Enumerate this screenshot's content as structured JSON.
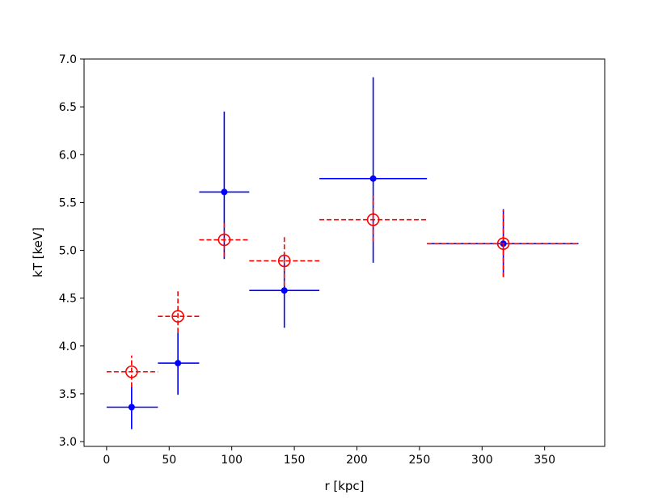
{
  "chart_data": {
    "type": "scatter",
    "title": "",
    "xlabel": "r [kpc]",
    "ylabel": "kT [keV]",
    "xlim": [
      -18,
      398
    ],
    "ylim": [
      2.95,
      7.0
    ],
    "xticks": [
      0,
      50,
      100,
      150,
      200,
      250,
      300,
      350
    ],
    "yticks": [
      3.0,
      3.5,
      4.0,
      4.5,
      5.0,
      5.5,
      6.0,
      6.5,
      7.0
    ],
    "ytick_labels": [
      "3.0",
      "3.5",
      "4.0",
      "4.5",
      "5.0",
      "5.5",
      "6.0",
      "6.5",
      "7.0"
    ],
    "grid": false,
    "legend": "none",
    "series": [
      {
        "color": "#0000ff",
        "marker": "filled-circle",
        "linestyle": "solid",
        "points": [
          {
            "x": 20,
            "y": 3.36,
            "xerr": [
              0,
              41
            ],
            "yerr": [
              3.13,
              3.58
            ]
          },
          {
            "x": 57,
            "y": 3.82,
            "xerr": [
              41,
              74
            ],
            "yerr": [
              3.49,
              4.14
            ]
          },
          {
            "x": 94,
            "y": 5.61,
            "xerr": [
              74,
              114
            ],
            "yerr": [
              4.91,
              6.45
            ]
          },
          {
            "x": 142,
            "y": 4.58,
            "xerr": [
              114,
              170
            ],
            "yerr": [
              4.19,
              4.97
            ]
          },
          {
            "x": 213,
            "y": 5.75,
            "xerr": [
              170,
              256
            ],
            "yerr": [
              4.87,
              6.81
            ]
          },
          {
            "x": 317,
            "y": 5.07,
            "xerr": [
              256,
              377
            ],
            "yerr": [
              4.72,
              5.43
            ]
          }
        ]
      },
      {
        "color": "#ff0000",
        "marker": "open-circle",
        "linestyle": "dashed",
        "points": [
          {
            "x": 20,
            "y": 3.73,
            "xerr": [
              0,
              41
            ],
            "yerr": [
              3.57,
              3.9
            ]
          },
          {
            "x": 57,
            "y": 4.31,
            "xerr": [
              41,
              74
            ],
            "yerr": [
              4.14,
              4.59
            ]
          },
          {
            "x": 94,
            "y": 5.11,
            "xerr": [
              74,
              114
            ],
            "yerr": [
              4.93,
              5.29
            ]
          },
          {
            "x": 142,
            "y": 4.89,
            "xerr": [
              114,
              170
            ],
            "yerr": [
              4.63,
              5.16
            ]
          },
          {
            "x": 213,
            "y": 5.32,
            "xerr": [
              170,
              256
            ],
            "yerr": [
              5.09,
              5.57
            ]
          },
          {
            "x": 317,
            "y": 5.07,
            "xerr": [
              256,
              377
            ],
            "yerr": [
              4.72,
              5.42
            ]
          }
        ]
      }
    ]
  }
}
